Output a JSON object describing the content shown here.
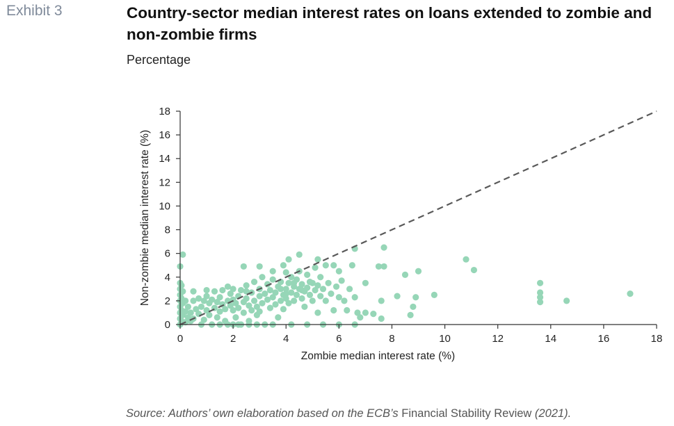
{
  "header": {
    "exhibit": "Exhibit 3",
    "title": "Country-sector median interest rates on loans extended to zombie and non-zombie firms",
    "subtitle": "Percentage"
  },
  "source": {
    "prefix": "Source: Authors’ own elaboration based on the ECB’s ",
    "publication": "Financial Stability Review",
    "suffix": " (2021)."
  },
  "colors": {
    "points": "#96d6b7",
    "axis": "#333333",
    "diagonal": "#595959"
  },
  "chart_data": {
    "type": "scatter",
    "title": "Country-sector median interest rates on loans extended to zombie and non-zombie firms",
    "subtitle": "Percentage",
    "xlabel": "Zombie median interest rate (%)",
    "ylabel": "Non-zombie median interest rate (%)",
    "xlim": [
      0,
      18
    ],
    "ylim": [
      0,
      18
    ],
    "xticks": [
      "0",
      "2",
      "4",
      "6",
      "8",
      "10",
      "12",
      "14",
      "16",
      "18"
    ],
    "yticks": [
      "0",
      "2",
      "4",
      "6",
      "8",
      "10",
      "12",
      "14",
      "16",
      "18"
    ],
    "reference_line": {
      "style": "dashed",
      "from": [
        0,
        0
      ],
      "to": [
        18,
        18
      ]
    },
    "grid": false,
    "legend": "none",
    "series": [
      {
        "points": [
          [
            0.0,
            0.0
          ],
          [
            0.0,
            0.5
          ],
          [
            0.0,
            1.0
          ],
          [
            0.0,
            1.5
          ],
          [
            0.0,
            2.0
          ],
          [
            0.0,
            2.5
          ],
          [
            0.0,
            3.0
          ],
          [
            0.0,
            3.5
          ],
          [
            0.0,
            4.9
          ],
          [
            0.1,
            5.9
          ],
          [
            0.05,
            0.3
          ],
          [
            0.05,
            1.2
          ],
          [
            0.05,
            2.2
          ],
          [
            0.05,
            3.3
          ],
          [
            0.1,
            0.8
          ],
          [
            0.1,
            1.8
          ],
          [
            0.1,
            2.8
          ],
          [
            0.2,
            0.2
          ],
          [
            0.2,
            1.1
          ],
          [
            0.2,
            2.0
          ],
          [
            0.3,
            0.6
          ],
          [
            0.3,
            1.5
          ],
          [
            0.4,
            0.3
          ],
          [
            0.4,
            1.0
          ],
          [
            0.5,
            2.0
          ],
          [
            0.5,
            0.5
          ],
          [
            0.6,
            1.3
          ],
          [
            0.7,
            0.9
          ],
          [
            0.7,
            2.2
          ],
          [
            0.8,
            0.0
          ],
          [
            0.8,
            1.5
          ],
          [
            0.9,
            2.0
          ],
          [
            0.9,
            0.4
          ],
          [
            1.0,
            1.2
          ],
          [
            1.0,
            2.4
          ],
          [
            1.1,
            0.8
          ],
          [
            1.1,
            1.8
          ],
          [
            1.2,
            0.0
          ],
          [
            1.2,
            2.1
          ],
          [
            1.3,
            1.4
          ],
          [
            1.3,
            2.8
          ],
          [
            1.4,
            0.6
          ],
          [
            1.4,
            1.9
          ],
          [
            1.5,
            1.1
          ],
          [
            1.5,
            2.3
          ],
          [
            1.5,
            0.0
          ],
          [
            1.6,
            1.7
          ],
          [
            1.6,
            2.9
          ],
          [
            1.7,
            1.3
          ],
          [
            1.7,
            0.3
          ],
          [
            1.8,
            2.0
          ],
          [
            1.8,
            0.0
          ],
          [
            1.9,
            1.6
          ],
          [
            1.9,
            2.6
          ],
          [
            2.0,
            0.0
          ],
          [
            2.0,
            1.2
          ],
          [
            2.0,
            2.1
          ],
          [
            2.0,
            3.0
          ],
          [
            2.1,
            1.8
          ],
          [
            2.1,
            0.6
          ],
          [
            2.2,
            2.4
          ],
          [
            2.2,
            1.4
          ],
          [
            2.3,
            0.0
          ],
          [
            2.3,
            2.9
          ],
          [
            2.4,
            1.9
          ],
          [
            2.4,
            1.0
          ],
          [
            2.5,
            2.2
          ],
          [
            2.5,
            3.3
          ],
          [
            2.6,
            1.6
          ],
          [
            2.6,
            0.3
          ],
          [
            2.7,
            2.7
          ],
          [
            2.7,
            1.2
          ],
          [
            2.8,
            2.0
          ],
          [
            2.8,
            3.6
          ],
          [
            2.9,
            1.5
          ],
          [
            2.9,
            0.8
          ],
          [
            3.0,
            2.4
          ],
          [
            3.0,
            3.0
          ],
          [
            3.0,
            1.1
          ],
          [
            3.1,
            1.8
          ],
          [
            3.1,
            4.0
          ],
          [
            3.2,
            2.6
          ],
          [
            3.2,
            0.0
          ],
          [
            3.3,
            2.1
          ],
          [
            3.3,
            3.4
          ],
          [
            3.4,
            1.4
          ],
          [
            3.4,
            2.9
          ],
          [
            3.5,
            2.3
          ],
          [
            3.5,
            3.8
          ],
          [
            3.6,
            1.7
          ],
          [
            3.6,
            2.7
          ],
          [
            3.7,
            3.2
          ],
          [
            3.7,
            0.6
          ],
          [
            3.8,
            2.0
          ],
          [
            3.8,
            3.6
          ],
          [
            3.9,
            2.5
          ],
          [
            3.9,
            1.3
          ],
          [
            4.0,
            3.0
          ],
          [
            4.0,
            4.4
          ],
          [
            4.0,
            2.2
          ],
          [
            4.1,
            3.5
          ],
          [
            4.1,
            1.8
          ],
          [
            4.2,
            2.7
          ],
          [
            4.2,
            4.0
          ],
          [
            4.3,
            3.2
          ],
          [
            4.3,
            2.0
          ],
          [
            4.4,
            3.8
          ],
          [
            4.4,
            2.5
          ],
          [
            4.5,
            3.0
          ],
          [
            4.5,
            4.5
          ],
          [
            4.6,
            2.2
          ],
          [
            4.6,
            3.4
          ],
          [
            4.7,
            2.8
          ],
          [
            4.7,
            1.5
          ],
          [
            4.8,
            3.1
          ],
          [
            4.8,
            4.2
          ],
          [
            4.9,
            2.5
          ],
          [
            5.0,
            3.5
          ],
          [
            5.0,
            2.0
          ],
          [
            5.1,
            4.8
          ],
          [
            5.1,
            2.9
          ],
          [
            5.2,
            3.3
          ],
          [
            5.2,
            1.0
          ],
          [
            5.3,
            2.4
          ],
          [
            5.3,
            4.0
          ],
          [
            5.4,
            3.0
          ],
          [
            5.5,
            2.0
          ],
          [
            5.5,
            5.0
          ],
          [
            5.6,
            3.5
          ],
          [
            5.7,
            2.6
          ],
          [
            5.8,
            1.2
          ],
          [
            5.9,
            3.2
          ],
          [
            6.0,
            2.3
          ],
          [
            6.0,
            4.5
          ],
          [
            6.1,
            3.7
          ],
          [
            6.2,
            2.0
          ],
          [
            6.3,
            1.2
          ],
          [
            6.4,
            3.0
          ],
          [
            6.5,
            5.0
          ],
          [
            6.6,
            6.4
          ],
          [
            6.6,
            2.3
          ],
          [
            6.7,
            1.0
          ],
          [
            6.8,
            0.6
          ],
          [
            7.0,
            3.5
          ],
          [
            7.0,
            1.0
          ],
          [
            7.3,
            0.9
          ],
          [
            7.5,
            4.9
          ],
          [
            7.6,
            0.5
          ],
          [
            7.7,
            4.9
          ],
          [
            7.7,
            6.5
          ],
          [
            7.6,
            2.0
          ],
          [
            8.2,
            2.4
          ],
          [
            8.5,
            4.2
          ],
          [
            8.7,
            0.8
          ],
          [
            8.8,
            1.5
          ],
          [
            8.9,
            2.3
          ],
          [
            9.0,
            4.5
          ],
          [
            9.6,
            2.5
          ],
          [
            10.8,
            5.5
          ],
          [
            11.1,
            4.6
          ],
          [
            13.6,
            3.5
          ],
          [
            13.6,
            2.7
          ],
          [
            13.6,
            2.3
          ],
          [
            13.6,
            1.9
          ],
          [
            14.6,
            2.0
          ],
          [
            17.0,
            2.6
          ],
          [
            2.2,
            0.0
          ],
          [
            2.6,
            0.0
          ],
          [
            2.9,
            0.0
          ],
          [
            3.5,
            0.0
          ],
          [
            4.2,
            0.0
          ],
          [
            4.8,
            0.0
          ],
          [
            5.4,
            0.0
          ],
          [
            6.0,
            0.0
          ],
          [
            6.6,
            0.0
          ],
          [
            3.0,
            4.9
          ],
          [
            2.4,
            4.9
          ],
          [
            3.5,
            4.5
          ],
          [
            4.1,
            5.5
          ],
          [
            4.5,
            5.9
          ],
          [
            3.9,
            5.0
          ],
          [
            5.2,
            5.5
          ],
          [
            5.8,
            5.0
          ],
          [
            0.5,
            2.8
          ],
          [
            1.0,
            2.9
          ],
          [
            1.8,
            3.2
          ],
          [
            2.5,
            2.8
          ],
          [
            3.8,
            3.0
          ],
          [
            4.0,
            2.6
          ],
          [
            4.3,
            3.5
          ],
          [
            4.6,
            2.9
          ],
          [
            4.9,
            3.6
          ]
        ]
      }
    ]
  }
}
